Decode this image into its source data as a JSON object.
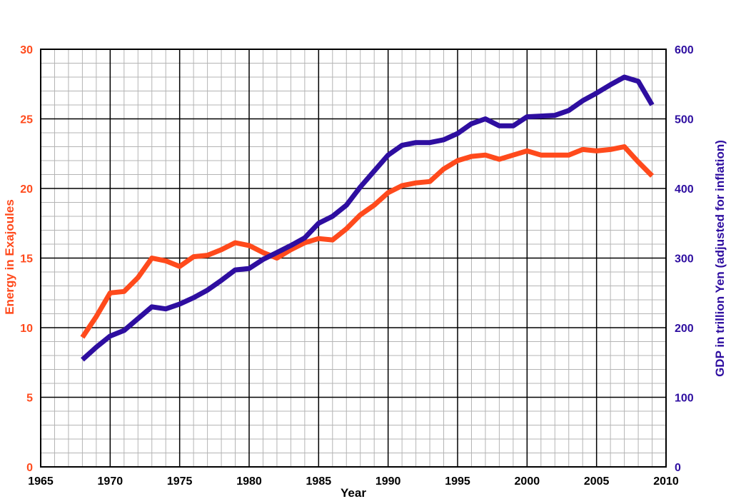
{
  "chart_data": {
    "type": "line",
    "xlabel": "Year",
    "ylabel_left": "Energy in Exajoules",
    "ylabel_right": "GDP in trillion Yen (adjusted for inflation)",
    "xlim": [
      1965,
      2010
    ],
    "ylim_left": [
      0,
      30
    ],
    "ylim_right": [
      0,
      600
    ],
    "x_ticks": [
      1965,
      1970,
      1975,
      1980,
      1985,
      1990,
      1995,
      2000,
      2005,
      2010
    ],
    "y_ticks_left": [
      0,
      5,
      10,
      15,
      20,
      25,
      30
    ],
    "y_ticks_right": [
      0,
      100,
      200,
      300,
      400,
      500,
      600
    ],
    "grid": true,
    "colors": {
      "energy": "#ff4a1c",
      "gdp": "#2e0ea0",
      "grid_minor": "#b4b4b4",
      "grid_major": "#000000"
    },
    "series": [
      {
        "key": "energy",
        "axis": "left",
        "x": [
          1968,
          1969,
          1970,
          1971,
          1972,
          1973,
          1974,
          1975,
          1976,
          1977,
          1978,
          1979,
          1980,
          1981,
          1982,
          1983,
          1984,
          1985,
          1986,
          1987,
          1988,
          1989,
          1990,
          1991,
          1992,
          1993,
          1994,
          1995,
          1996,
          1997,
          1998,
          1999,
          2000,
          2001,
          2002,
          2003,
          2004,
          2005,
          2006,
          2007,
          2008,
          2009
        ],
        "values": [
          9.3,
          10.8,
          12.5,
          12.6,
          13.6,
          15.0,
          14.8,
          14.4,
          15.1,
          15.2,
          15.6,
          16.1,
          15.9,
          15.4,
          15.0,
          15.6,
          16.1,
          16.4,
          16.3,
          17.1,
          18.1,
          18.8,
          19.7,
          20.2,
          20.4,
          20.5,
          21.4,
          22.0,
          22.3,
          22.4,
          22.1,
          22.4,
          22.7,
          22.4,
          22.4,
          22.4,
          22.8,
          22.7,
          22.8,
          23.0,
          21.9,
          20.9
        ]
      },
      {
        "key": "gdp",
        "axis": "right",
        "x": [
          1968,
          1969,
          1970,
          1971,
          1972,
          1973,
          1974,
          1975,
          1976,
          1977,
          1978,
          1979,
          1980,
          1981,
          1982,
          1983,
          1984,
          1985,
          1986,
          1987,
          1988,
          1989,
          1990,
          1991,
          1992,
          1993,
          1994,
          1995,
          1996,
          1997,
          1998,
          1999,
          2000,
          2001,
          2002,
          2003,
          2004,
          2005,
          2006,
          2007,
          2008,
          2009
        ],
        "values": [
          154,
          172,
          188,
          196,
          213,
          230,
          227,
          234,
          243,
          254,
          268,
          283,
          285,
          298,
          308,
          318,
          329,
          350,
          360,
          376,
          402,
          425,
          448,
          462,
          466,
          466,
          470,
          479,
          493,
          500,
          490,
          490,
          503,
          504,
          505,
          512,
          526,
          537,
          549,
          560,
          554,
          520
        ]
      }
    ]
  }
}
